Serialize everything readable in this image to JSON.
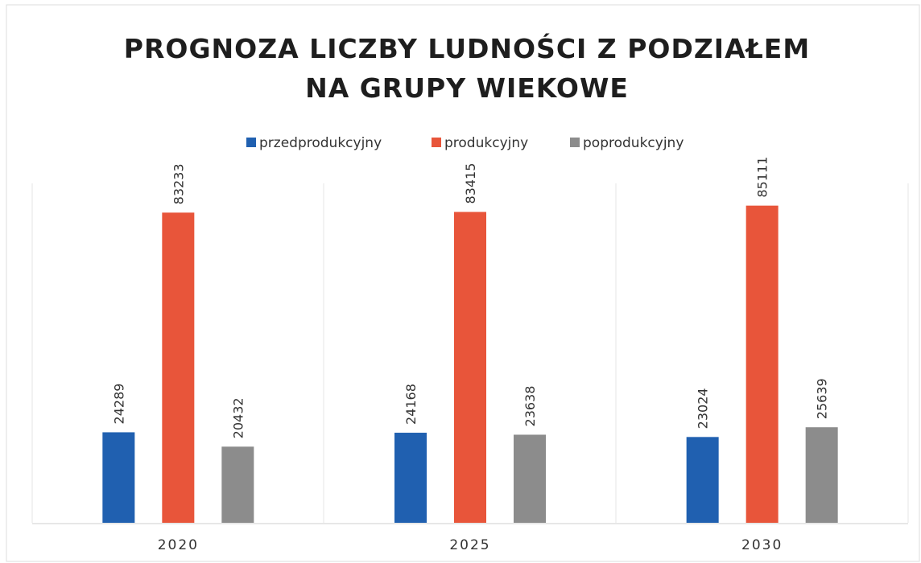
{
  "chart_data": {
    "type": "bar",
    "title": [
      "PROGNOZA LICZBY LUDNOŚCI Z PODZIAŁEM",
      "NA GRUPY WIEKOWE"
    ],
    "categories": [
      "2020",
      "2025",
      "2030"
    ],
    "series": [
      {
        "name": "przedprodukcyjny",
        "color": "#2060b0",
        "values": [
          24289,
          24168,
          23024
        ]
      },
      {
        "name": "produkcyjny",
        "color": "#e8553a",
        "values": [
          83233,
          83415,
          85111
        ]
      },
      {
        "name": "poprodukcyjny",
        "color": "#8c8c8c",
        "values": [
          20432,
          23638,
          25639
        ]
      }
    ],
    "ylim": [
      0,
      90000
    ],
    "legend": "top",
    "grid": false
  }
}
